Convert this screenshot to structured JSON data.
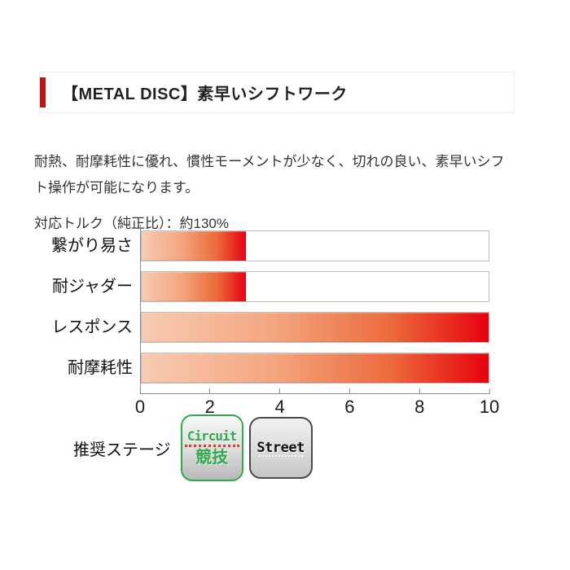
{
  "header": {
    "title": "【METAL DISC】素早いシフトワーク"
  },
  "description": "耐熱、耐摩耗性に優れ、慣性モーメントが少なく、切れの良い、素早いシフト操作が可能になります。",
  "torque_note": "対応トルク（純正比）：約130%",
  "chart_data": {
    "type": "bar",
    "orientation": "horizontal",
    "categories": [
      "繋がり易さ",
      "耐ジャダー",
      "レスポンス",
      "耐摩耗性"
    ],
    "values": [
      3,
      3,
      10,
      10
    ],
    "xlim": [
      0,
      10
    ],
    "ticks": [
      0,
      2,
      4,
      6,
      8,
      10
    ],
    "title": "",
    "xlabel": "",
    "ylabel": "",
    "grid": false,
    "bar_style": "gradient-left-to-right"
  },
  "legend": {
    "label": "推奨ステージ",
    "badges": [
      {
        "line1": "Circuit",
        "line2": "競技"
      },
      {
        "line1": "Street"
      }
    ]
  },
  "colors": {
    "accent_red": "#c9100f",
    "bar_gradient_start": "#f8cbb2",
    "bar_gradient_end": "#e60012",
    "circuit_green": "#2faa50",
    "street_border": "#4a4a4a",
    "axis_gray": "#8a8a8a"
  }
}
